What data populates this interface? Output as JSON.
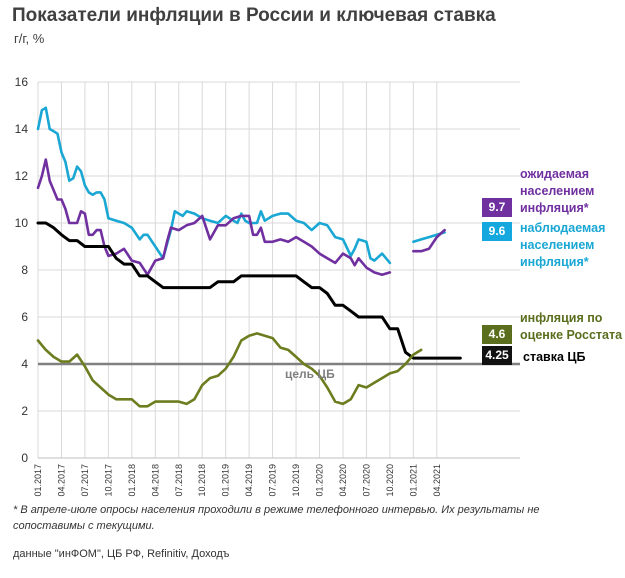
{
  "title": "Показатели инфляции в России и ключевая ставка",
  "subtitle": "г/г, %",
  "footnote": "* В апреле-июле опросы населения проходили в режиме телефонного интервью. Их результаты не сопоставимы с текущими.",
  "source": "данные \"инФОМ\", ЦБ РФ, Refinitiv, Доходъ",
  "target_label": "цель ЦБ",
  "labels": {
    "expected": "ожидаемая населением инфляция*",
    "observed": "наблюдаемая населением инфляция*",
    "rosstat": "инфляция по оценке Росстата",
    "key_rate": "ставка ЦБ"
  },
  "badges": {
    "expected": "9.7",
    "observed": "9.6",
    "rosstat": "4.6",
    "key_rate": "4.25"
  },
  "colors": {
    "expected": "#7030a0",
    "observed": "#1aa7d4",
    "rosstat": "#6b7d1f",
    "key_rate": "#000000",
    "target": "#808080"
  },
  "chart_data": {
    "type": "line",
    "x_ticks": [
      "01.2017",
      "04.2017",
      "07.2017",
      "10.2017",
      "01.2018",
      "04.2018",
      "07.2018",
      "10.2018",
      "01.2019",
      "04.2019",
      "07.2019",
      "10.2019",
      "01.2020",
      "04.2020",
      "07.2020",
      "10.2020",
      "01.2021",
      "04.2021"
    ],
    "y_ticks": [
      0,
      2,
      4,
      6,
      8,
      10,
      12,
      14,
      16
    ],
    "ylim": [
      0,
      16
    ],
    "target_value": 4,
    "series": [
      {
        "key": "observed",
        "points": [
          [
            0,
            14.0
          ],
          [
            0.5,
            14.8
          ],
          [
            1,
            14.9
          ],
          [
            1.5,
            14.0
          ],
          [
            2,
            13.9
          ],
          [
            2.5,
            13.8
          ],
          [
            3,
            13.0
          ],
          [
            3.5,
            12.6
          ],
          [
            4,
            11.8
          ],
          [
            4.5,
            11.9
          ],
          [
            5,
            12.4
          ],
          [
            5.5,
            12.2
          ],
          [
            6,
            11.6
          ],
          [
            6.5,
            11.3
          ],
          [
            7,
            11.2
          ],
          [
            7.5,
            11.3
          ],
          [
            8,
            11.3
          ],
          [
            8.5,
            11.0
          ],
          [
            9,
            10.2
          ],
          [
            10,
            10.1
          ],
          [
            11,
            10.0
          ],
          [
            12,
            9.8
          ],
          [
            13,
            9.3
          ],
          [
            13.5,
            9.5
          ],
          [
            14,
            9.5
          ],
          [
            15,
            9.0
          ],
          [
            16,
            8.5
          ],
          [
            16.5,
            9.1
          ],
          [
            17,
            9.7
          ],
          [
            17.5,
            10.5
          ],
          [
            18,
            10.4
          ],
          [
            18.5,
            10.3
          ],
          [
            19,
            10.5
          ],
          [
            20,
            10.4
          ],
          [
            21,
            10.2
          ],
          [
            22,
            10.1
          ],
          [
            23,
            10.0
          ],
          [
            24,
            10.3
          ],
          [
            25,
            10.1
          ],
          [
            25.5,
            10.0
          ],
          [
            26,
            10.4
          ],
          [
            26.5,
            10.1
          ],
          [
            27,
            10.0
          ],
          [
            28,
            10.0
          ],
          [
            28.5,
            10.5
          ],
          [
            29,
            10.1
          ],
          [
            30,
            10.3
          ],
          [
            31,
            10.4
          ],
          [
            32,
            10.4
          ],
          [
            33,
            10.1
          ],
          [
            34,
            10.0
          ],
          [
            35,
            9.7
          ],
          [
            36,
            10.0
          ],
          [
            37,
            9.9
          ],
          [
            38,
            9.4
          ],
          [
            39,
            9.3
          ],
          [
            40,
            8.6
          ],
          [
            40.5,
            8.9
          ],
          [
            41,
            9.3
          ],
          [
            42,
            9.2
          ],
          [
            42.5,
            8.5
          ],
          [
            43,
            8.4
          ],
          [
            44,
            8.7
          ],
          [
            45,
            8.3
          ]
        ]
      },
      {
        "key": "observed",
        "points": [
          [
            48,
            9.2
          ],
          [
            49,
            9.3
          ],
          [
            50,
            9.4
          ],
          [
            51,
            9.5
          ],
          [
            52,
            9.6
          ]
        ]
      },
      {
        "key": "expected",
        "points": [
          [
            0,
            11.5
          ],
          [
            0.5,
            12.0
          ],
          [
            1,
            12.7
          ],
          [
            1.5,
            11.8
          ],
          [
            2,
            11.4
          ],
          [
            2.5,
            11.0
          ],
          [
            3,
            11.0
          ],
          [
            3.5,
            10.6
          ],
          [
            4,
            10.0
          ],
          [
            5,
            10.0
          ],
          [
            5.5,
            10.5
          ],
          [
            6,
            10.4
          ],
          [
            6.5,
            9.5
          ],
          [
            7,
            9.5
          ],
          [
            7.5,
            9.7
          ],
          [
            8,
            9.7
          ],
          [
            8.5,
            9.0
          ],
          [
            9,
            8.6
          ],
          [
            10,
            8.7
          ],
          [
            11,
            8.9
          ],
          [
            12,
            8.4
          ],
          [
            13,
            8.3
          ],
          [
            14,
            7.8
          ],
          [
            15,
            8.4
          ],
          [
            16,
            8.5
          ],
          [
            16.5,
            9.2
          ],
          [
            17,
            9.8
          ],
          [
            18,
            9.7
          ],
          [
            19,
            9.9
          ],
          [
            20,
            10.0
          ],
          [
            21,
            10.3
          ],
          [
            22,
            9.3
          ],
          [
            23,
            9.9
          ],
          [
            24,
            9.9
          ],
          [
            25,
            10.2
          ],
          [
            26,
            10.3
          ],
          [
            27,
            10.3
          ],
          [
            27.5,
            9.5
          ],
          [
            28,
            9.5
          ],
          [
            28.5,
            9.8
          ],
          [
            29,
            9.2
          ],
          [
            30,
            9.2
          ],
          [
            31,
            9.3
          ],
          [
            32,
            9.2
          ],
          [
            33,
            9.4
          ],
          [
            34,
            9.2
          ],
          [
            35,
            9.0
          ],
          [
            36,
            8.7
          ],
          [
            37,
            8.5
          ],
          [
            38,
            8.3
          ],
          [
            39,
            8.7
          ],
          [
            40,
            8.5
          ],
          [
            40.5,
            8.2
          ],
          [
            41,
            8.5
          ],
          [
            42,
            8.1
          ],
          [
            43,
            7.9
          ],
          [
            44,
            7.8
          ],
          [
            45,
            7.9
          ]
        ]
      },
      {
        "key": "expected",
        "points": [
          [
            48,
            8.8
          ],
          [
            49,
            8.8
          ],
          [
            50,
            8.9
          ],
          [
            51,
            9.4
          ],
          [
            52,
            9.7
          ]
        ]
      },
      {
        "key": "key_rate",
        "points": [
          [
            0,
            10.0
          ],
          [
            1,
            10.0
          ],
          [
            2,
            9.8
          ],
          [
            3,
            9.5
          ],
          [
            4,
            9.25
          ],
          [
            5,
            9.25
          ],
          [
            6,
            9.0
          ],
          [
            7,
            9.0
          ],
          [
            8,
            9.0
          ],
          [
            9,
            9.0
          ],
          [
            10,
            8.5
          ],
          [
            11,
            8.25
          ],
          [
            12,
            8.25
          ],
          [
            13,
            7.75
          ],
          [
            14,
            7.75
          ],
          [
            15,
            7.5
          ],
          [
            16,
            7.25
          ],
          [
            17,
            7.25
          ],
          [
            18,
            7.25
          ],
          [
            19,
            7.25
          ],
          [
            20,
            7.25
          ],
          [
            21,
            7.25
          ],
          [
            22,
            7.25
          ],
          [
            23,
            7.5
          ],
          [
            24,
            7.5
          ],
          [
            25,
            7.5
          ],
          [
            26,
            7.75
          ],
          [
            27,
            7.75
          ],
          [
            28,
            7.75
          ],
          [
            29,
            7.75
          ],
          [
            30,
            7.75
          ],
          [
            31,
            7.75
          ],
          [
            32,
            7.75
          ],
          [
            33,
            7.75
          ],
          [
            34,
            7.5
          ],
          [
            35,
            7.25
          ],
          [
            36,
            7.25
          ],
          [
            37,
            7.0
          ],
          [
            38,
            6.5
          ],
          [
            39,
            6.5
          ],
          [
            40,
            6.25
          ],
          [
            41,
            6.0
          ],
          [
            42,
            6.0
          ],
          [
            43,
            6.0
          ],
          [
            44,
            6.0
          ],
          [
            45,
            5.5
          ],
          [
            46,
            5.5
          ],
          [
            47,
            4.5
          ],
          [
            48,
            4.25
          ],
          [
            49,
            4.25
          ],
          [
            50,
            4.25
          ],
          [
            51,
            4.25
          ],
          [
            52,
            4.25
          ],
          [
            53,
            4.25
          ],
          [
            54,
            4.25
          ]
        ]
      },
      {
        "key": "rosstat",
        "points": [
          [
            0,
            5.0
          ],
          [
            1,
            4.6
          ],
          [
            2,
            4.3
          ],
          [
            3,
            4.1
          ],
          [
            4,
            4.1
          ],
          [
            5,
            4.4
          ],
          [
            6,
            3.9
          ],
          [
            7,
            3.3
          ],
          [
            8,
            3.0
          ],
          [
            9,
            2.7
          ],
          [
            10,
            2.5
          ],
          [
            11,
            2.5
          ],
          [
            12,
            2.5
          ],
          [
            13,
            2.2
          ],
          [
            14,
            2.2
          ],
          [
            15,
            2.4
          ],
          [
            16,
            2.4
          ],
          [
            17,
            2.4
          ],
          [
            18,
            2.4
          ],
          [
            19,
            2.3
          ],
          [
            20,
            2.5
          ],
          [
            21,
            3.1
          ],
          [
            22,
            3.4
          ],
          [
            23,
            3.5
          ],
          [
            24,
            3.8
          ],
          [
            25,
            4.3
          ],
          [
            26,
            5.0
          ],
          [
            27,
            5.2
          ],
          [
            28,
            5.3
          ],
          [
            29,
            5.2
          ],
          [
            30,
            5.1
          ],
          [
            31,
            4.7
          ],
          [
            32,
            4.6
          ],
          [
            33,
            4.3
          ],
          [
            34,
            4.0
          ],
          [
            35,
            3.8
          ],
          [
            36,
            3.5
          ],
          [
            37,
            3.0
          ],
          [
            38,
            2.4
          ],
          [
            39,
            2.3
          ],
          [
            40,
            2.5
          ],
          [
            41,
            3.1
          ],
          [
            42,
            3.0
          ],
          [
            43,
            3.2
          ],
          [
            44,
            3.4
          ],
          [
            45,
            3.6
          ],
          [
            46,
            3.7
          ],
          [
            47,
            4.0
          ],
          [
            48,
            4.4
          ],
          [
            49,
            4.6
          ]
        ]
      }
    ]
  }
}
